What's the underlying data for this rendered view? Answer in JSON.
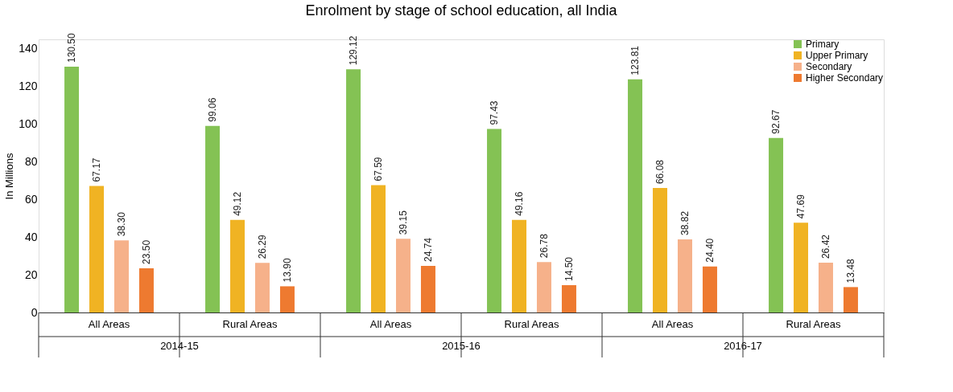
{
  "chart_data": {
    "type": "bar",
    "title": "Enrolment by stage of school education, all India",
    "ylabel": "In Millions",
    "categories": [
      "All Areas",
      "Rural Areas",
      "All Areas",
      "Rural Areas",
      "All Areas",
      "Rural Areas"
    ],
    "annotations": [
      "2014-15",
      "2015-16",
      "2016-17"
    ],
    "series": [
      {
        "name": "Primary",
        "color": "#84c254",
        "values": [
          130.5,
          99.06,
          129.12,
          97.43,
          123.81,
          92.67
        ],
        "value_labels": [
          "130.50",
          "99.06",
          "129.12",
          "97.43",
          "123.81",
          "92.67"
        ]
      },
      {
        "name": "Upper Primary",
        "color": "#f0b323",
        "values": [
          67.17,
          49.12,
          67.59,
          49.16,
          66.08,
          47.69
        ],
        "value_labels": [
          "67.17",
          "49.12",
          "67.59",
          "49.16",
          "66.08",
          "47.69"
        ]
      },
      {
        "name": "Secondary",
        "color": "#f6b18a",
        "values": [
          38.3,
          26.29,
          39.15,
          26.78,
          38.82,
          26.42
        ],
        "value_labels": [
          "38.30",
          "26.29",
          "39.15",
          "26.78",
          "38.82",
          "26.42"
        ]
      },
      {
        "name": "Higher Secondary",
        "color": "#ee7a30",
        "values": [
          23.5,
          13.9,
          24.74,
          14.5,
          24.4,
          13.48
        ],
        "value_labels": [
          "23.50",
          "13.90",
          "24.74",
          "14.50",
          "24.40",
          "13.48"
        ]
      }
    ],
    "ylim": [
      0,
      145
    ],
    "yticks": [
      0,
      20,
      40,
      60,
      80,
      100,
      120,
      140
    ],
    "grid": false,
    "legend": "top right"
  }
}
